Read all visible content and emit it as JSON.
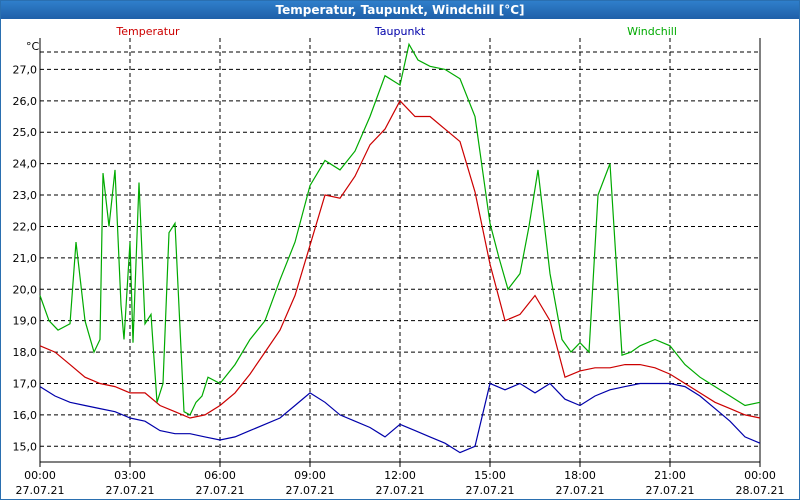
{
  "window": {
    "title": "Temperatur, Taupunkt, Windchill [°C]"
  },
  "colors": {
    "temperatur": "#cc0000",
    "taupunkt": "#0000aa",
    "windchill": "#00aa00",
    "grid": "#000000"
  },
  "chart_data": {
    "type": "line",
    "title": "Temperatur, Taupunkt, Windchill [°C]",
    "ylabel": "°C",
    "ylim": [
      14.5,
      28.0
    ],
    "xlim": [
      0,
      24
    ],
    "grid": true,
    "y_ticks": [
      "15,0",
      "16,0",
      "17,0",
      "18,0",
      "19,0",
      "20,0",
      "21,0",
      "22,0",
      "23,0",
      "24,0",
      "25,0",
      "26,0",
      "27,0"
    ],
    "y_tick_values": [
      15,
      16,
      17,
      18,
      19,
      20,
      21,
      22,
      23,
      24,
      25,
      26,
      27
    ],
    "x_ticks": [
      {
        "time": "00:00",
        "date": "27.07.21"
      },
      {
        "time": "03:00",
        "date": "27.07.21"
      },
      {
        "time": "06:00",
        "date": "27.07.21"
      },
      {
        "time": "09:00",
        "date": "27.07.21"
      },
      {
        "time": "12:00",
        "date": "27.07.21"
      },
      {
        "time": "15:00",
        "date": "27.07.21"
      },
      {
        "time": "18:00",
        "date": "27.07.21"
      },
      {
        "time": "21:00",
        "date": "27.07.21"
      },
      {
        "time": "00:00",
        "date": "28.07.21"
      }
    ],
    "x_tick_values": [
      0,
      3,
      6,
      9,
      12,
      15,
      18,
      21,
      24
    ],
    "legend": [
      "Temperatur",
      "Taupunkt",
      "Windchill"
    ],
    "series": [
      {
        "name": "Temperatur",
        "color": "#cc0000",
        "x": [
          0,
          0.5,
          1,
          1.5,
          2,
          2.5,
          3,
          3.5,
          4,
          4.5,
          5,
          5.5,
          6,
          6.5,
          7,
          7.5,
          8,
          8.5,
          9,
          9.5,
          10,
          10.5,
          11,
          11.5,
          12,
          12.5,
          13,
          13.5,
          14,
          14.5,
          15,
          15.5,
          16,
          16.5,
          17,
          17.5,
          18,
          18.5,
          19,
          19.5,
          20,
          20.5,
          21,
          21.5,
          22,
          22.5,
          23,
          23.5,
          24
        ],
        "values": [
          18.2,
          18.0,
          17.6,
          17.2,
          17.0,
          16.9,
          16.7,
          16.7,
          16.3,
          16.1,
          15.9,
          16.0,
          16.3,
          16.7,
          17.3,
          18.0,
          18.7,
          19.8,
          21.4,
          23.0,
          22.9,
          23.6,
          24.6,
          25.1,
          26.0,
          25.5,
          25.5,
          25.1,
          24.7,
          23.1,
          20.8,
          19.0,
          19.2,
          19.8,
          19.0,
          17.2,
          17.4,
          17.5,
          17.5,
          17.6,
          17.6,
          17.5,
          17.3,
          17.0,
          16.7,
          16.4,
          16.2,
          16.0,
          15.9
        ]
      },
      {
        "name": "Taupunkt",
        "color": "#0000aa",
        "x": [
          0,
          0.5,
          1,
          1.5,
          2,
          2.5,
          3,
          3.5,
          4,
          4.5,
          5,
          5.5,
          6,
          6.5,
          7,
          7.5,
          8,
          8.5,
          9,
          9.5,
          10,
          10.5,
          11,
          11.5,
          12,
          12.5,
          13,
          13.5,
          14,
          14.5,
          15,
          15.5,
          16,
          16.5,
          17,
          17.5,
          18,
          18.5,
          19,
          19.5,
          20,
          20.5,
          21,
          21.5,
          22,
          22.5,
          23,
          23.5,
          24
        ],
        "values": [
          16.9,
          16.6,
          16.4,
          16.3,
          16.2,
          16.1,
          15.9,
          15.8,
          15.5,
          15.4,
          15.4,
          15.3,
          15.2,
          15.3,
          15.5,
          15.7,
          15.9,
          16.3,
          16.7,
          16.4,
          16.0,
          15.8,
          15.6,
          15.3,
          15.7,
          15.5,
          15.3,
          15.1,
          14.8,
          15.0,
          17.0,
          16.8,
          17.0,
          16.7,
          17.0,
          16.5,
          16.3,
          16.6,
          16.8,
          16.9,
          17.0,
          17.0,
          17.0,
          16.9,
          16.6,
          16.2,
          15.8,
          15.3,
          15.1
        ]
      },
      {
        "name": "Windchill",
        "color": "#00aa00",
        "x": [
          0,
          0.3,
          0.6,
          1,
          1.2,
          1.5,
          1.8,
          2,
          2.1,
          2.3,
          2.5,
          2.7,
          2.8,
          3,
          3.1,
          3.3,
          3.5,
          3.7,
          3.9,
          4.1,
          4.3,
          4.5,
          4.8,
          5,
          5.2,
          5.4,
          5.6,
          6,
          6.5,
          7,
          7.5,
          8,
          8.5,
          9,
          9.5,
          10,
          10.5,
          11,
          11.5,
          12,
          12.3,
          12.6,
          13,
          13.5,
          14,
          14.5,
          15,
          15.3,
          15.6,
          16,
          16.3,
          16.6,
          17,
          17.4,
          17.7,
          18,
          18.3,
          18.6,
          19,
          19.4,
          19.7,
          20,
          20.5,
          21,
          21.5,
          22,
          22.5,
          23,
          23.5,
          24
        ],
        "values": [
          19.8,
          19.0,
          18.7,
          18.9,
          21.5,
          19.0,
          18.0,
          18.4,
          23.7,
          22.0,
          23.8,
          19.5,
          18.4,
          21.5,
          18.3,
          23.4,
          18.9,
          19.2,
          16.4,
          17.0,
          21.8,
          22.1,
          16.1,
          16.0,
          16.4,
          16.6,
          17.2,
          17.0,
          17.6,
          18.4,
          19.0,
          20.3,
          21.5,
          23.3,
          24.1,
          23.8,
          24.4,
          25.5,
          26.8,
          26.5,
          27.8,
          27.3,
          27.1,
          27.0,
          26.7,
          25.5,
          22.1,
          21.0,
          20.0,
          20.5,
          22.0,
          23.8,
          20.5,
          18.4,
          18.0,
          18.3,
          18.0,
          23.0,
          24.0,
          17.9,
          18.0,
          18.2,
          18.4,
          18.2,
          17.6,
          17.2,
          16.9,
          16.6,
          16.3,
          16.4
        ]
      }
    ]
  }
}
